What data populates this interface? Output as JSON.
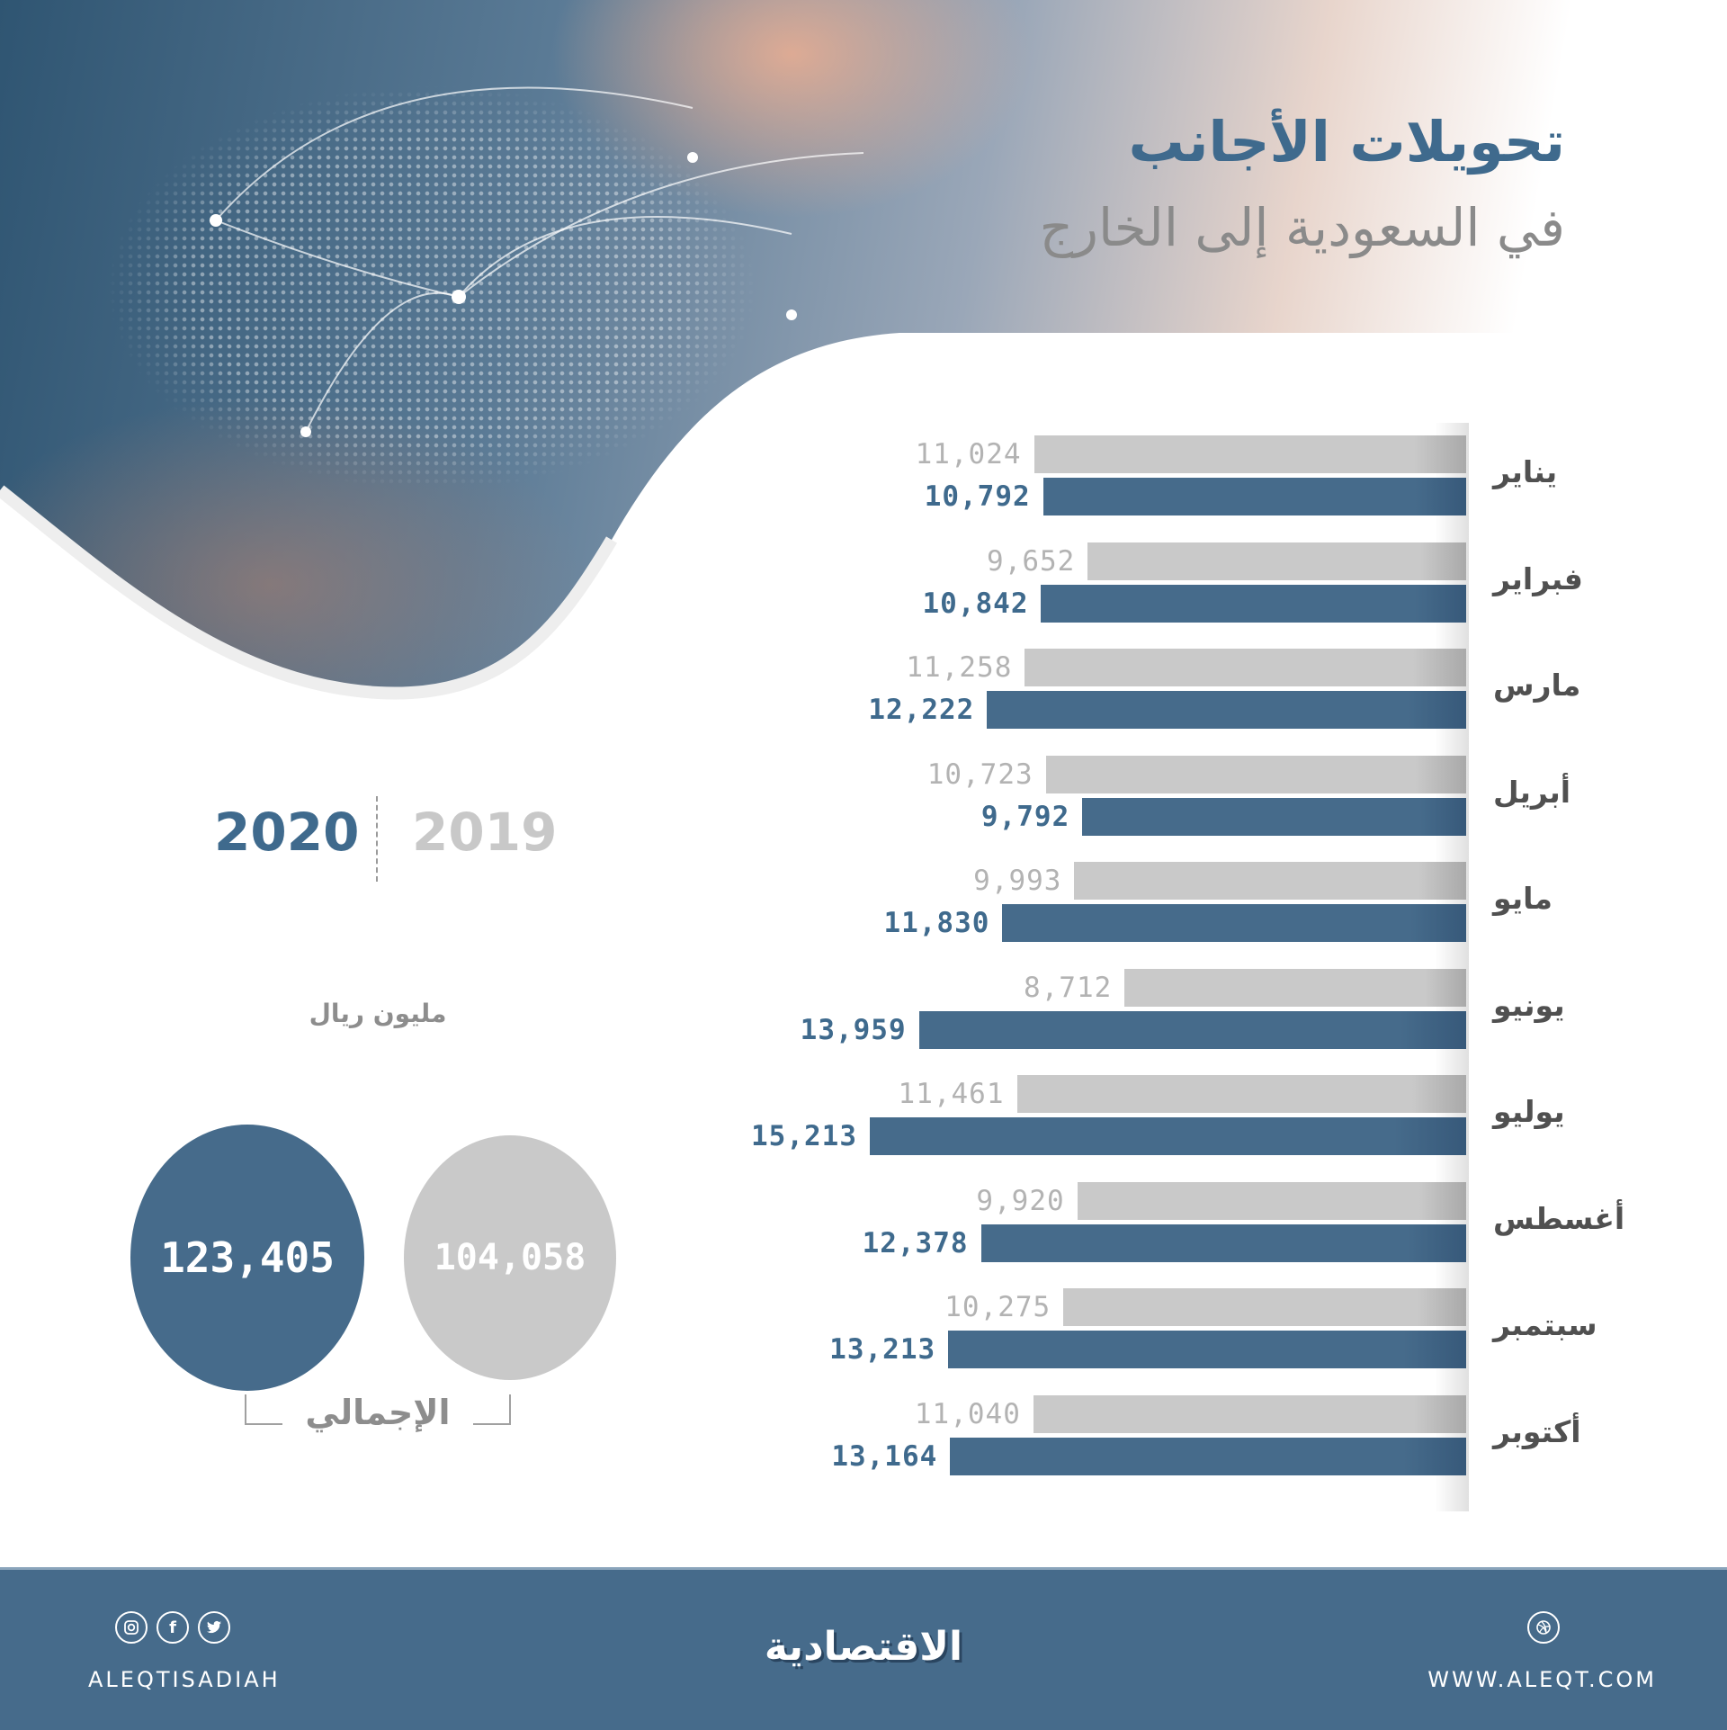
{
  "title": {
    "main": "تحويلات الأجانب",
    "sub": "في السعودية إلى الخارج"
  },
  "legend": {
    "year_2020": "2020",
    "year_2019": "2019"
  },
  "unit_label": "مليون ريال",
  "totals": {
    "label": "الإجمالي",
    "value_2020": "123,405",
    "value_2019": "104,058"
  },
  "colors": {
    "series_2020": "#466b8b",
    "series_2019": "#c9c9c9",
    "title": "#3f6a8d",
    "footer": "#466b8b"
  },
  "rows": [
    {
      "month": "يناير",
      "v2019": "11,024",
      "v2020": "10,792"
    },
    {
      "month": "فبراير",
      "v2019": "9,652",
      "v2020": "10,842"
    },
    {
      "month": "مارس",
      "v2019": "11,258",
      "v2020": "12,222"
    },
    {
      "month": "أبريل",
      "v2019": "10,723",
      "v2020": "9,792"
    },
    {
      "month": "مايو",
      "v2019": "9,993",
      "v2020": "11,830"
    },
    {
      "month": "يونيو",
      "v2019": "8,712",
      "v2020": "13,959"
    },
    {
      "month": "يوليو",
      "v2019": "11,461",
      "v2020": "15,213"
    },
    {
      "month": "أغسطس",
      "v2019": "9,920",
      "v2020": "12,378"
    },
    {
      "month": "سبتمبر",
      "v2019": "10,275",
      "v2020": "13,213"
    },
    {
      "month": "أكتوبر",
      "v2019": "11,040",
      "v2020": "13,164"
    }
  ],
  "footer": {
    "handle": "ALEQTISADIAH",
    "logo": "الاقتصادية",
    "website": "WWW.ALEQT.COM",
    "social_icons": [
      "instagram-icon",
      "facebook-icon",
      "twitter-icon"
    ],
    "web_icon": "globe-icon"
  },
  "chart_data": {
    "type": "bar",
    "orientation": "horizontal",
    "title": "تحويلات الأجانب في السعودية إلى الخارج",
    "unit": "مليون ريال",
    "categories": [
      "يناير",
      "فبراير",
      "مارس",
      "أبريل",
      "مايو",
      "يونيو",
      "يوليو",
      "أغسطس",
      "سبتمبر",
      "أكتوبر"
    ],
    "series": [
      {
        "name": "2019",
        "color": "#c9c9c9",
        "values": [
          11024,
          9652,
          11258,
          10723,
          9993,
          8712,
          11461,
          9920,
          10275,
          11040
        ]
      },
      {
        "name": "2020",
        "color": "#466b8b",
        "values": [
          10792,
          10842,
          12222,
          9792,
          11830,
          13959,
          15213,
          12378,
          13213,
          13164
        ]
      }
    ],
    "totals": {
      "2019": 104058,
      "2020": 123405
    },
    "grid": false,
    "legend_position": "left"
  }
}
